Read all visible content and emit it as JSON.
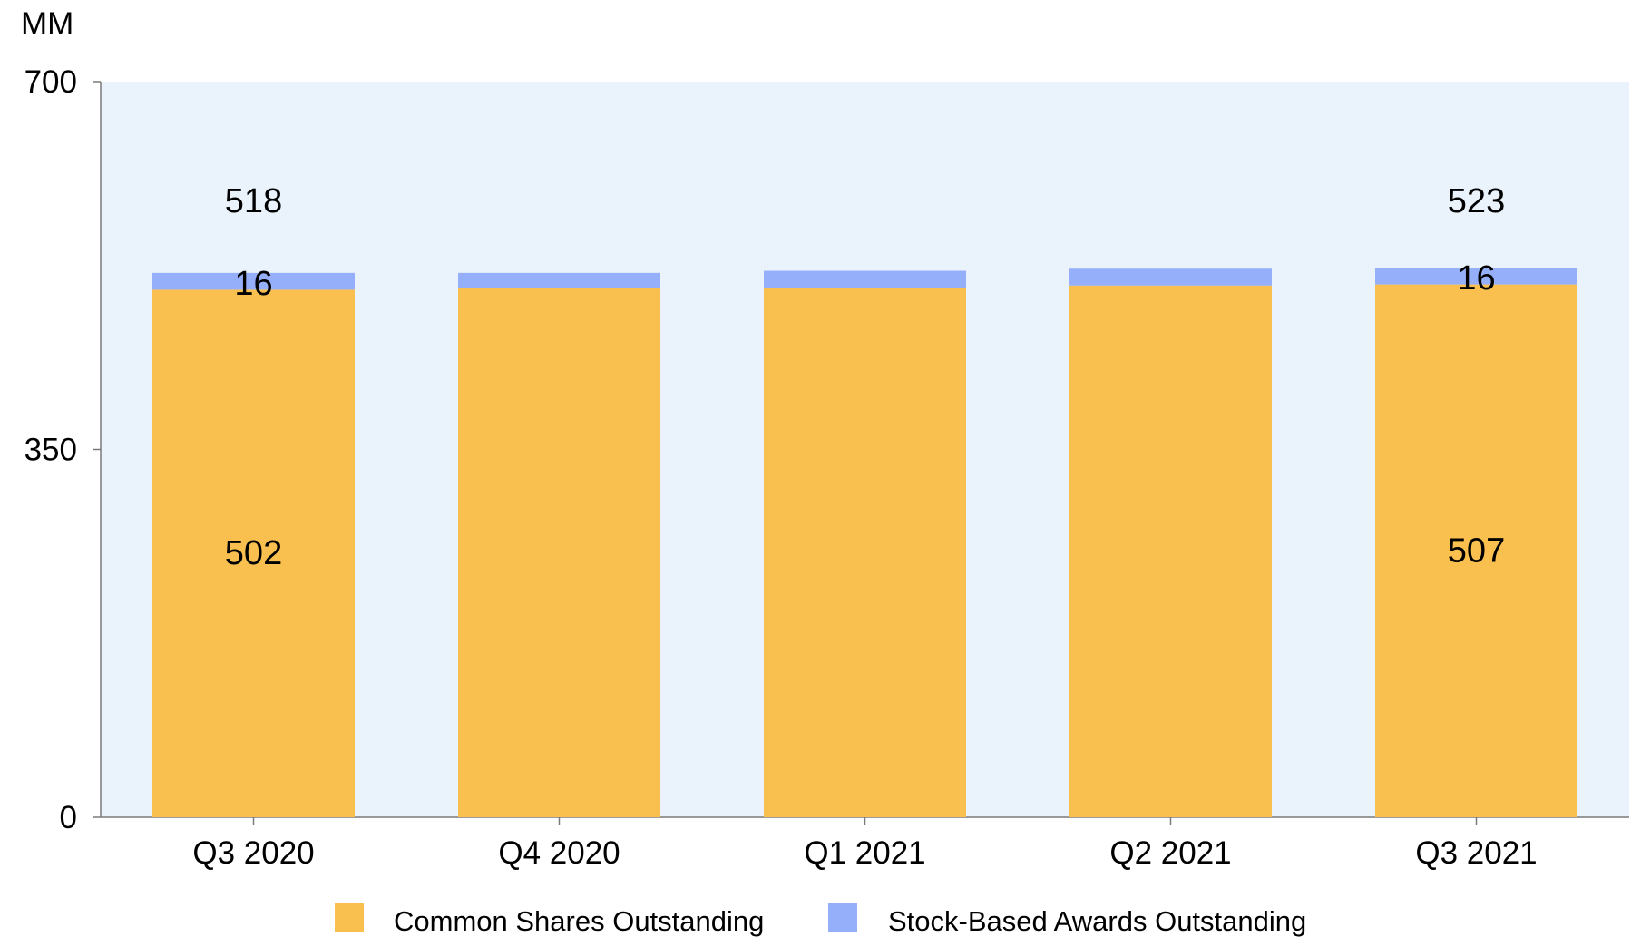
{
  "chart_data": {
    "type": "bar",
    "stacked": true,
    "y_unit_label": "MM",
    "ylim": [
      0,
      700
    ],
    "y_ticks": [
      0,
      350,
      700
    ],
    "y_tick_labels": [
      "0",
      "350",
      "700"
    ],
    "categories": [
      "Q3 2020",
      "Q4 2020",
      "Q1 2021",
      "Q2 2021",
      "Q3 2021"
    ],
    "series": [
      {
        "name": "Common Shares Outstanding",
        "color": "#F9BF4F",
        "values": [
          502,
          504,
          504,
          506,
          507
        ],
        "labels": [
          "502",
          "",
          "",
          "",
          "507"
        ]
      },
      {
        "name": "Stock-Based Awards Outstanding",
        "color": "#96AFFA",
        "values": [
          16,
          14,
          16,
          16,
          16
        ],
        "labels": [
          "16",
          "",
          "",
          "",
          "16"
        ]
      }
    ],
    "total_labels": [
      "518",
      "",
      "",
      "",
      "523"
    ],
    "legend_position": "bottom-center",
    "plot_background": "#EAF2FC",
    "grid": false
  }
}
